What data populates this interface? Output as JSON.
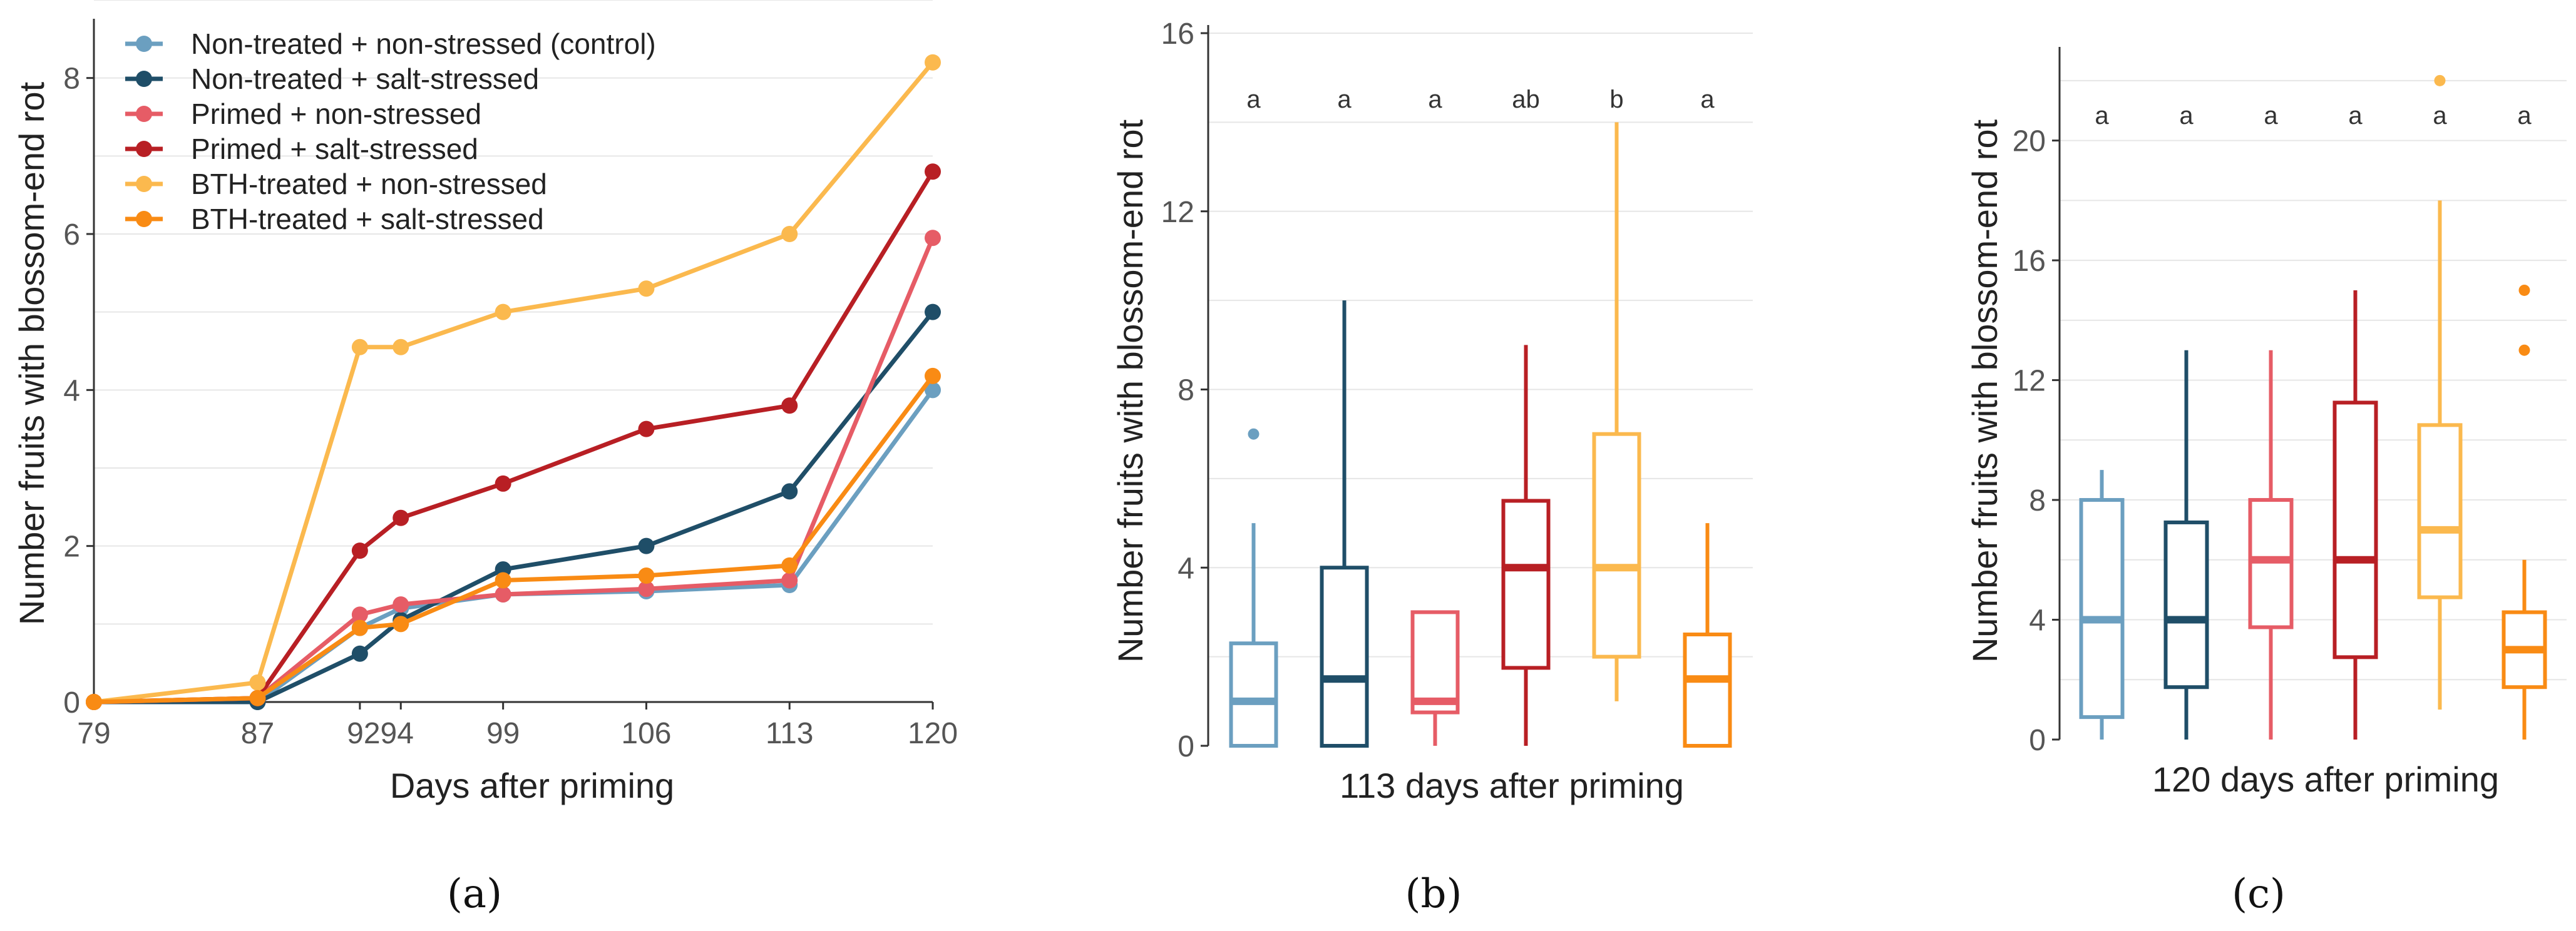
{
  "chart_data": [
    {
      "panel": "(a)",
      "type": "line",
      "xlabel": "Days after priming",
      "ylabel": "Number fruits with blossom-end rot",
      "x": [
        79,
        87,
        92,
        94,
        99,
        106,
        113,
        120
      ],
      "x_ticks": [
        "79",
        "87",
        "9294",
        "99",
        "106",
        "113",
        "120"
      ],
      "ylim": [
        0,
        9
      ],
      "y_ticks": [
        0,
        2,
        4,
        6,
        8
      ],
      "legend_position": "top-left",
      "grid": "horizontal",
      "series": [
        {
          "name": "Non-treated + non-stressed (control)",
          "color": "#6b9fc0",
          "values": [
            0,
            0,
            0.95,
            1.2,
            1.38,
            1.42,
            1.5,
            4.0
          ]
        },
        {
          "name": "Non-treated + salt-stressed",
          "color": "#1f4e68",
          "values": [
            0,
            0,
            0.62,
            1.05,
            1.7,
            2.0,
            2.7,
            5.0
          ]
        },
        {
          "name": "Primed + non-stressed",
          "color": "#e65c66",
          "values": [
            0,
            0.05,
            1.12,
            1.25,
            1.38,
            1.45,
            1.56,
            5.95
          ]
        },
        {
          "name": "Primed + salt-stressed",
          "color": "#b81f24",
          "values": [
            0,
            0.05,
            1.94,
            2.36,
            2.8,
            3.5,
            3.8,
            6.8
          ]
        },
        {
          "name": "BTH-treated + non-stressed",
          "color": "#fbb94e",
          "values": [
            0,
            0.25,
            4.55,
            4.55,
            5.0,
            5.3,
            6.0,
            8.2
          ]
        },
        {
          "name": "BTH-treated + salt-stressed",
          "color": "#f98b14",
          "values": [
            0,
            0.05,
            0.95,
            1.0,
            1.56,
            1.62,
            1.75,
            4.18
          ]
        }
      ]
    },
    {
      "panel": "(b)",
      "type": "box",
      "xlabel": "113 days after priming",
      "ylabel": "Number fruits with blossom-end rot",
      "ylim": [
        0,
        16
      ],
      "y_ticks": [
        0,
        4,
        8,
        12,
        16
      ],
      "grid": "horizontal",
      "groups": [
        {
          "color": "#6b9fc0",
          "min": 0,
          "q1": 0,
          "median": 1,
          "q3": 2.3,
          "max": 5,
          "outliers": [
            7
          ],
          "letter": "a"
        },
        {
          "color": "#1f4e68",
          "min": 0,
          "q1": 0,
          "median": 1.5,
          "q3": 4,
          "max": 10,
          "outliers": [],
          "letter": "a"
        },
        {
          "color": "#e65c66",
          "min": 0,
          "q1": 0.75,
          "median": 1,
          "q3": 3,
          "max": 3,
          "outliers": [],
          "letter": "a"
        },
        {
          "color": "#b81f24",
          "min": 0,
          "q1": 1.75,
          "median": 4,
          "q3": 5.5,
          "max": 9,
          "outliers": [],
          "letter": "ab"
        },
        {
          "color": "#fbb94e",
          "min": 1,
          "q1": 2,
          "median": 4,
          "q3": 7,
          "max": 14,
          "outliers": [],
          "letter": "b"
        },
        {
          "color": "#f98b14",
          "min": 0,
          "q1": 0,
          "median": 1.5,
          "q3": 2.5,
          "max": 5,
          "outliers": [],
          "letter": "a"
        }
      ]
    },
    {
      "panel": "(c)",
      "type": "box",
      "xlabel": "120 days after priming",
      "ylabel": "Number fruits with blossom-end rot",
      "ylim": [
        0,
        23
      ],
      "y_ticks": [
        0,
        4,
        8,
        12,
        16,
        20
      ],
      "grid": "horizontal",
      "groups": [
        {
          "color": "#6b9fc0",
          "min": 0,
          "q1": 0.75,
          "median": 4,
          "q3": 8,
          "max": 9,
          "outliers": [],
          "letter": "a"
        },
        {
          "color": "#1f4e68",
          "min": 0,
          "q1": 1.75,
          "median": 4,
          "q3": 7.25,
          "max": 13,
          "outliers": [],
          "letter": "a"
        },
        {
          "color": "#e65c66",
          "min": 0,
          "q1": 3.75,
          "median": 6,
          "q3": 8,
          "max": 13,
          "outliers": [],
          "letter": "a"
        },
        {
          "color": "#b81f24",
          "min": 0,
          "q1": 2.75,
          "median": 6,
          "q3": 11.25,
          "max": 15,
          "outliers": [],
          "letter": "a"
        },
        {
          "color": "#fbb94e",
          "min": 1,
          "q1": 4.75,
          "median": 7,
          "q3": 10.5,
          "max": 18,
          "outliers": [
            22
          ],
          "letter": "a"
        },
        {
          "color": "#f98b14",
          "min": 0,
          "q1": 1.75,
          "median": 3,
          "q3": 4.25,
          "max": 6,
          "outliers": [
            13,
            15
          ],
          "letter": "a"
        }
      ]
    }
  ]
}
